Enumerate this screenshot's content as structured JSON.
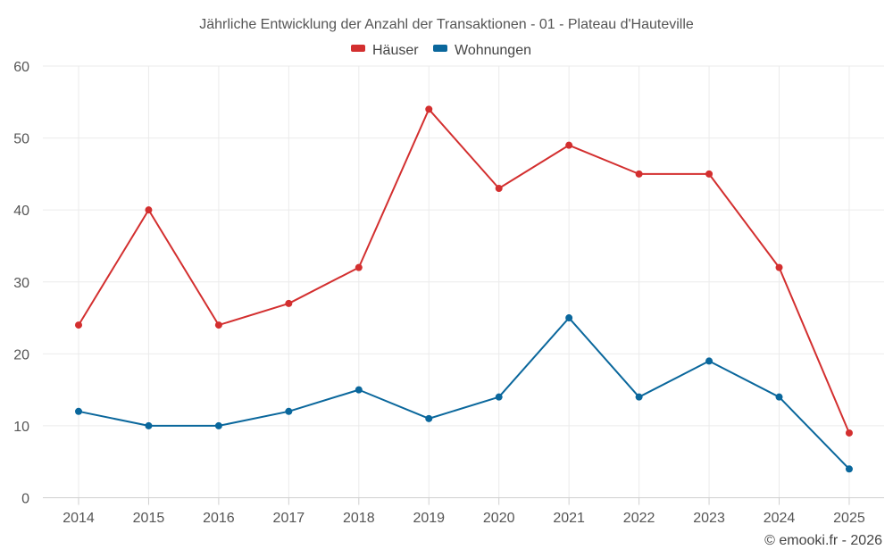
{
  "chart_data": {
    "type": "line",
    "title": "Jährliche Entwicklung der Anzahl der Transaktionen - 01 - Plateau d'Hauteville",
    "categories": [
      "2014",
      "2015",
      "2016",
      "2017",
      "2018",
      "2019",
      "2020",
      "2021",
      "2022",
      "2023",
      "2024",
      "2025"
    ],
    "series": [
      {
        "name": "Häuser",
        "color": "#d32f2f",
        "values": [
          24,
          40,
          24,
          27,
          32,
          54,
          43,
          49,
          45,
          45,
          32,
          9
        ]
      },
      {
        "name": "Wohnungen",
        "color": "#0a679c",
        "values": [
          12,
          10,
          10,
          12,
          15,
          11,
          14,
          25,
          14,
          19,
          14,
          4
        ]
      }
    ],
    "yticks": [
      "0",
      "10",
      "20",
      "30",
      "40",
      "50",
      "60"
    ],
    "ylim": [
      0,
      60
    ],
    "xlabel": "",
    "ylabel": "",
    "grid": true,
    "legend_position": "top-center"
  },
  "credit": "© emooki.fr - 2026"
}
